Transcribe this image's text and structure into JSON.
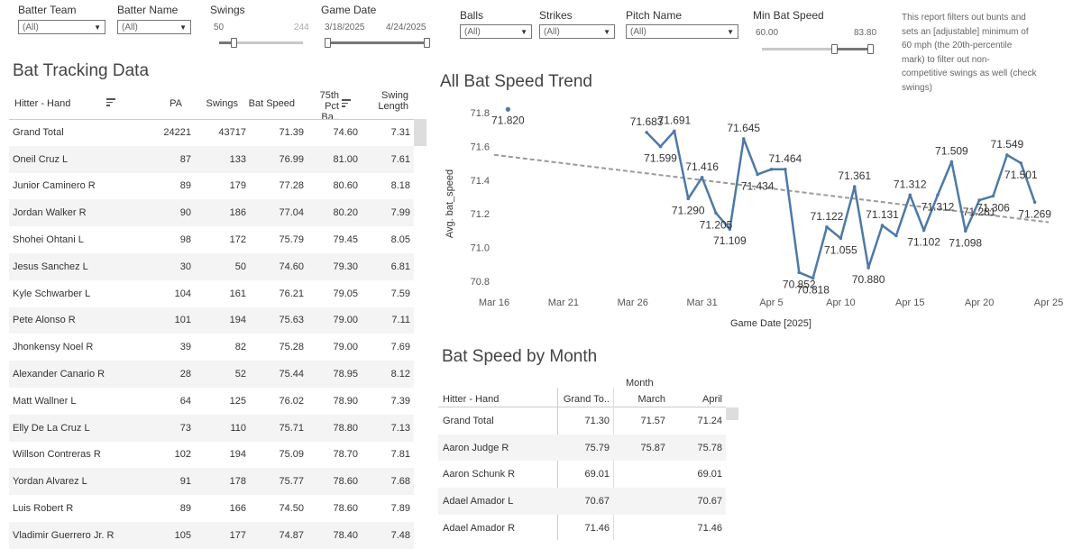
{
  "filters": {
    "batter_team": {
      "label": "Batter Team",
      "value": "(All)"
    },
    "batter_name": {
      "label": "Batter Name",
      "value": "(All)"
    },
    "swings": {
      "label": "Swings",
      "min": "50",
      "max": "244"
    },
    "game_date": {
      "label": "Game Date",
      "start": "3/18/2025",
      "end": "4/24/2025"
    },
    "balls": {
      "label": "Balls",
      "value": "(All)"
    },
    "strikes": {
      "label": "Strikes",
      "value": "(All)"
    },
    "pitch_name": {
      "label": "Pitch Name",
      "value": "(All)"
    },
    "min_bat_speed": {
      "label": "Min Bat Speed",
      "min": "60.00",
      "max": "83.80"
    }
  },
  "note": {
    "line1": "This report filters out bunts and",
    "line2": "sets an [adjustable] minimum of",
    "line3": "60 mph (the 20th-percentile",
    "line4": "mark) to filter out non-",
    "line5": "competitive swings as well (check",
    "line6": "swings)"
  },
  "bat_table": {
    "title": "Bat Tracking Data",
    "headers": {
      "hitter": "Hitter - Hand",
      "pa": "PA",
      "swings": "Swings",
      "bat_speed": "Bat Speed",
      "pct75_line1": "75th",
      "pct75_line2": "Pct Ba..",
      "swing_len_line1": "Swing",
      "swing_len_line2": "Length"
    },
    "rows": [
      {
        "name": "Grand Total",
        "pa": "24221",
        "swings": "43717",
        "bs": "71.39",
        "p75": "74.60",
        "len": "7.31"
      },
      {
        "name": "Oneil Cruz L",
        "pa": "87",
        "swings": "133",
        "bs": "76.99",
        "p75": "81.00",
        "len": "7.61"
      },
      {
        "name": "Junior Caminero R",
        "pa": "89",
        "swings": "179",
        "bs": "77.28",
        "p75": "80.60",
        "len": "8.18"
      },
      {
        "name": "Jordan Walker R",
        "pa": "90",
        "swings": "186",
        "bs": "77.04",
        "p75": "80.20",
        "len": "7.99"
      },
      {
        "name": "Shohei Ohtani L",
        "pa": "98",
        "swings": "172",
        "bs": "75.79",
        "p75": "79.45",
        "len": "8.05"
      },
      {
        "name": "Jesus Sanchez L",
        "pa": "30",
        "swings": "50",
        "bs": "74.60",
        "p75": "79.30",
        "len": "6.81"
      },
      {
        "name": "Kyle Schwarber L",
        "pa": "104",
        "swings": "161",
        "bs": "76.21",
        "p75": "79.05",
        "len": "7.59"
      },
      {
        "name": "Pete Alonso R",
        "pa": "101",
        "swings": "194",
        "bs": "75.63",
        "p75": "79.00",
        "len": "7.11"
      },
      {
        "name": "Jhonkensy Noel R",
        "pa": "39",
        "swings": "82",
        "bs": "75.28",
        "p75": "79.00",
        "len": "7.69"
      },
      {
        "name": "Alexander Canario R",
        "pa": "28",
        "swings": "52",
        "bs": "75.44",
        "p75": "78.95",
        "len": "8.12"
      },
      {
        "name": "Matt Wallner L",
        "pa": "64",
        "swings": "125",
        "bs": "76.02",
        "p75": "78.90",
        "len": "7.39"
      },
      {
        "name": "Elly De La Cruz L",
        "pa": "73",
        "swings": "110",
        "bs": "75.71",
        "p75": "78.80",
        "len": "7.13"
      },
      {
        "name": "Willson Contreras R",
        "pa": "102",
        "swings": "194",
        "bs": "75.09",
        "p75": "78.70",
        "len": "7.81"
      },
      {
        "name": "Yordan Alvarez L",
        "pa": "91",
        "swings": "178",
        "bs": "75.77",
        "p75": "78.60",
        "len": "7.68"
      },
      {
        "name": "Luis Robert R",
        "pa": "89",
        "swings": "166",
        "bs": "74.50",
        "p75": "78.60",
        "len": "7.89"
      },
      {
        "name": "Vladimir Guerrero Jr. R",
        "pa": "105",
        "swings": "177",
        "bs": "74.87",
        "p75": "78.40",
        "len": "7.48"
      }
    ]
  },
  "month_table": {
    "title": "Bat Speed by Month",
    "month_header": "Month",
    "headers": {
      "hitter": "Hitter - Hand",
      "grand": "Grand To..",
      "march": "March",
      "april": "April"
    },
    "rows": [
      {
        "name": "Grand Total",
        "grand": "71.30",
        "march": "71.57",
        "april": "71.24"
      },
      {
        "name": "Aaron Judge R",
        "grand": "75.79",
        "march": "75.87",
        "april": "75.78"
      },
      {
        "name": "Aaron Schunk R",
        "grand": "69.01",
        "march": "",
        "april": "69.01"
      },
      {
        "name": "Adael Amador L",
        "grand": "70.67",
        "march": "",
        "april": "70.67"
      },
      {
        "name": "Adael Amador R",
        "grand": "71.46",
        "march": "",
        "april": "71.46"
      }
    ]
  },
  "chart_data": {
    "type": "line",
    "title": "All Bat Speed Trend",
    "xlabel": "Game Date [2025]",
    "ylabel": "Avg. bat_speed",
    "ylim": [
      70.78,
      71.84
    ],
    "yticks": [
      70.8,
      71.0,
      71.2,
      71.4,
      71.6,
      71.8
    ],
    "xticks": [
      "Mar 16",
      "Mar 21",
      "Mar 26",
      "Mar 31",
      "Apr 5",
      "Apr 10",
      "Apr 15",
      "Apr 20",
      "Apr 25"
    ],
    "x_domain": [
      "Mar 16",
      "Apr 25"
    ],
    "color": "#4e79a7",
    "trend_color": "#9a9a9a",
    "isolated_point": {
      "x": "Mar 17",
      "y": 71.82,
      "label": "71.820"
    },
    "series": [
      {
        "points": [
          {
            "x": "Mar 27",
            "y": 71.683,
            "label": "71.683"
          },
          {
            "x": "Mar 28",
            "y": 71.599,
            "label": "71.599"
          },
          {
            "x": "Mar 29",
            "y": 71.691,
            "label": "71.691"
          },
          {
            "x": "Mar 30",
            "y": 71.29,
            "label": "71.290"
          },
          {
            "x": "Mar 31",
            "y": 71.416,
            "label": "71.416"
          },
          {
            "x": "Apr 1",
            "y": 71.205,
            "label": "71.205"
          },
          {
            "x": "Apr 2",
            "y": 71.109,
            "label": "71.109"
          },
          {
            "x": "Apr 3",
            "y": 71.645,
            "label": "71.645"
          },
          {
            "x": "Apr 4",
            "y": 71.434,
            "label": "71.434"
          },
          {
            "x": "Apr 5",
            "y": 71.464,
            "label": ""
          },
          {
            "x": "Apr 6",
            "y": 71.464,
            "label": "71.464"
          },
          {
            "x": "Apr 7",
            "y": 70.852,
            "label": "70.852"
          },
          {
            "x": "Apr 8",
            "y": 70.818,
            "label": "70.818"
          },
          {
            "x": "Apr 9",
            "y": 71.122,
            "label": "71.122"
          },
          {
            "x": "Apr 10",
            "y": 71.055,
            "label": "71.055"
          },
          {
            "x": "Apr 11",
            "y": 71.361,
            "label": "71.361"
          },
          {
            "x": "Apr 12",
            "y": 70.88,
            "label": "70.880"
          },
          {
            "x": "Apr 13",
            "y": 71.131,
            "label": "71.131"
          },
          {
            "x": "Apr 14",
            "y": 71.07,
            "label": ""
          },
          {
            "x": "Apr 15",
            "y": 71.312,
            "label": "71.312"
          },
          {
            "x": "Apr 16",
            "y": 71.102,
            "label": "71.102"
          },
          {
            "x": "Apr 17",
            "y": 71.312,
            "label": "71.312"
          },
          {
            "x": "Apr 18",
            "y": 71.509,
            "label": "71.509"
          },
          {
            "x": "Apr 19",
            "y": 71.098,
            "label": "71.098"
          },
          {
            "x": "Apr 20",
            "y": 71.281,
            "label": "71.281"
          },
          {
            "x": "Apr 21",
            "y": 71.306,
            "label": "71.306"
          },
          {
            "x": "Apr 22",
            "y": 71.549,
            "label": "71.549"
          },
          {
            "x": "Apr 23",
            "y": 71.501,
            "label": "71.501"
          },
          {
            "x": "Apr 24",
            "y": 71.269,
            "label": "71.269"
          }
        ]
      }
    ],
    "trendline": [
      {
        "x": "Mar 16",
        "y": 71.55
      },
      {
        "x": "Apr 25",
        "y": 71.15
      }
    ]
  }
}
